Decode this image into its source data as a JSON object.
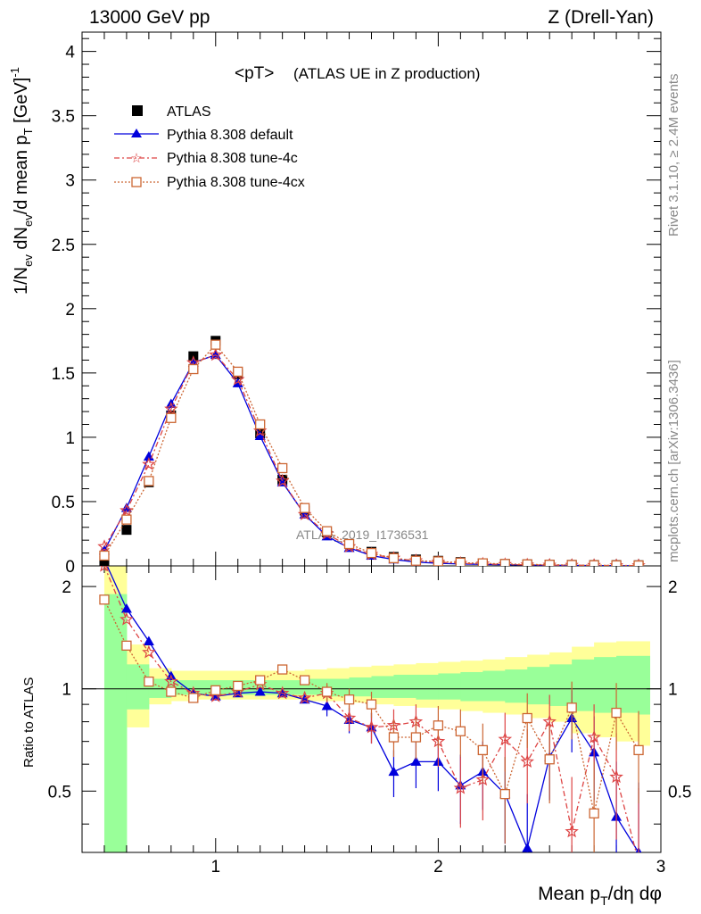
{
  "header": {
    "left": "13000 GeV pp",
    "right": "Z (Drell-Yan)"
  },
  "side_labels": {
    "rivet": "Rivet 3.1.10, ≥ 2.4M events",
    "mcplots": "mcplots.cern.ch [arXiv:1306.3436]"
  },
  "chart_data": {
    "type": "line",
    "title_main": "<pT>",
    "title_sub": "(ATLAS UE in Z production)",
    "watermark": "ATLAS_2019_I1736531",
    "xlabel": "Mean p",
    "xlabel_sub": "T",
    "xlabel_tail": "/dη dφ",
    "ylabel": "1/N",
    "ylabel_full": [
      "1/N",
      "ev",
      " dN",
      "ev",
      "/d mean p",
      "T",
      " [GeV]",
      "-1"
    ],
    "ratio_ylabel": "Ratio to ATLAS",
    "xlim": [
      0.4,
      3.0
    ],
    "ylim_main": [
      0,
      4.15
    ],
    "ylim_ratio": [
      0.33,
      2.3
    ],
    "x_ticks": [
      "1",
      "2",
      "3"
    ],
    "y_ticks_main": [
      "0",
      "0.5",
      "1",
      "1.5",
      "2",
      "2.5",
      "3",
      "3.5",
      "4"
    ],
    "y_ticks_ratio": [
      "0.5",
      "1",
      "2"
    ],
    "legend_placement": "top-left",
    "x": [
      0.5,
      0.6,
      0.7,
      0.8,
      0.9,
      1.0,
      1.1,
      1.2,
      1.3,
      1.4,
      1.5,
      1.6,
      1.7,
      1.8,
      1.9,
      2.0,
      2.1,
      2.2,
      2.3,
      2.4,
      2.5,
      2.6,
      2.7,
      2.8,
      2.9
    ],
    "series": [
      {
        "name": "ATLAS",
        "color": "#000000",
        "values": [
          0.04,
          0.28,
          0.65,
          1.17,
          1.63,
          1.75,
          1.49,
          1.03,
          0.67,
          0.43,
          0.26,
          0.17,
          0.11,
          0.07,
          0.05,
          0.04,
          0.03,
          0.02,
          0.015,
          0.012,
          0.01,
          0.008,
          0.007,
          0.006,
          0.005
        ]
      },
      {
        "name": "Pythia 8.308 default",
        "color": "#0000dd",
        "values": [
          0.12,
          0.45,
          0.85,
          1.26,
          1.58,
          1.64,
          1.42,
          1.01,
          0.65,
          0.4,
          0.23,
          0.14,
          0.08,
          0.05,
          0.03,
          0.02,
          0.015,
          0.012,
          0.009,
          0.007,
          0.005,
          0.004,
          0.003,
          0.002,
          0.001
        ],
        "ratio": [
          2.4,
          1.72,
          1.38,
          1.09,
          0.97,
          0.95,
          0.97,
          0.98,
          0.97,
          0.93,
          0.89,
          0.81,
          0.77,
          0.57,
          0.61,
          0.61,
          0.52,
          0.57,
          0.49,
          0.34,
          0.63,
          0.82,
          0.65,
          0.42,
          0.33
        ]
      },
      {
        "name": "Pythia 8.308 tune-4c",
        "color": "#dd4444",
        "values": [
          0.15,
          0.43,
          0.79,
          1.22,
          1.58,
          1.64,
          1.45,
          1.05,
          0.66,
          0.4,
          0.25,
          0.15,
          0.09,
          0.06,
          0.04,
          0.03,
          0.02,
          0.015,
          0.011,
          0.008,
          0.006,
          0.005,
          0.004,
          0.003,
          0.002
        ],
        "ratio": [
          2.3,
          1.6,
          1.28,
          1.05,
          0.97,
          0.95,
          0.98,
          1.03,
          0.97,
          0.94,
          0.97,
          0.82,
          0.77,
          0.78,
          0.8,
          0.7,
          0.51,
          0.54,
          0.71,
          0.61,
          0.8,
          0.38,
          0.72,
          0.55,
          0.31
        ]
      },
      {
        "name": "Pythia 8.308 tune-4cx",
        "color": "#cc6633",
        "values": [
          0.08,
          0.36,
          0.66,
          1.15,
          1.53,
          1.72,
          1.51,
          1.1,
          0.76,
          0.45,
          0.27,
          0.17,
          0.1,
          0.06,
          0.04,
          0.035,
          0.025,
          0.02,
          0.015,
          0.012,
          0.009,
          0.007,
          0.005,
          0.004,
          0.003
        ],
        "ratio": [
          1.83,
          1.34,
          1.05,
          0.98,
          0.94,
          0.99,
          1.02,
          1.06,
          1.14,
          1.06,
          0.98,
          0.93,
          0.9,
          0.72,
          0.72,
          0.78,
          0.75,
          0.66,
          0.49,
          0.82,
          0.62,
          0.88,
          0.43,
          0.85,
          0.66
        ]
      }
    ],
    "band_yellow": [
      [
        0.5,
        0.6,
        0.62,
        2.35
      ],
      [
        0.6,
        0.7,
        0.77,
        1.35
      ],
      [
        0.7,
        0.8,
        0.9,
        1.15
      ],
      [
        0.8,
        0.9,
        0.92,
        1.13
      ],
      [
        0.9,
        1.0,
        0.93,
        1.13
      ],
      [
        1.0,
        1.1,
        0.93,
        1.13
      ],
      [
        1.1,
        1.2,
        0.93,
        1.13
      ],
      [
        1.2,
        1.3,
        0.93,
        1.13
      ],
      [
        1.3,
        1.4,
        0.93,
        1.13
      ],
      [
        1.4,
        1.5,
        0.92,
        1.14
      ],
      [
        1.5,
        1.6,
        0.92,
        1.15
      ],
      [
        1.6,
        1.7,
        0.91,
        1.16
      ],
      [
        1.7,
        1.8,
        0.9,
        1.17
      ],
      [
        1.8,
        1.9,
        0.89,
        1.18
      ],
      [
        1.9,
        2.0,
        0.88,
        1.19
      ],
      [
        2.0,
        2.1,
        0.87,
        1.2
      ],
      [
        2.1,
        2.2,
        0.86,
        1.21
      ],
      [
        2.2,
        2.3,
        0.85,
        1.22
      ],
      [
        2.3,
        2.4,
        0.84,
        1.24
      ],
      [
        2.4,
        2.5,
        0.82,
        1.26
      ],
      [
        2.5,
        2.6,
        0.8,
        1.28
      ],
      [
        2.6,
        2.7,
        0.74,
        1.33
      ],
      [
        2.7,
        2.8,
        0.72,
        1.37
      ],
      [
        2.8,
        2.9,
        0.7,
        1.38
      ],
      [
        2.9,
        2.95,
        0.68,
        1.38
      ]
    ],
    "band_green": [
      [
        0.5,
        0.6,
        0.33,
        1.9
      ],
      [
        0.6,
        0.7,
        0.87,
        1.18
      ],
      [
        0.7,
        0.8,
        0.94,
        1.07
      ],
      [
        0.8,
        0.9,
        0.96,
        1.06
      ],
      [
        0.9,
        1.0,
        0.96,
        1.06
      ],
      [
        1.0,
        1.1,
        0.96,
        1.06
      ],
      [
        1.1,
        1.2,
        0.96,
        1.06
      ],
      [
        1.2,
        1.3,
        0.96,
        1.06
      ],
      [
        1.3,
        1.4,
        0.96,
        1.06
      ],
      [
        1.4,
        1.5,
        0.96,
        1.07
      ],
      [
        1.5,
        1.6,
        0.95,
        1.07
      ],
      [
        1.6,
        1.7,
        0.95,
        1.08
      ],
      [
        1.7,
        1.8,
        0.94,
        1.09
      ],
      [
        1.8,
        1.9,
        0.94,
        1.1
      ],
      [
        1.9,
        2.0,
        0.93,
        1.1
      ],
      [
        2.0,
        2.1,
        0.93,
        1.11
      ],
      [
        2.1,
        2.2,
        0.92,
        1.12
      ],
      [
        2.2,
        2.3,
        0.92,
        1.13
      ],
      [
        2.3,
        2.4,
        0.91,
        1.14
      ],
      [
        2.4,
        2.5,
        0.9,
        1.16
      ],
      [
        2.5,
        2.6,
        0.89,
        1.18
      ],
      [
        2.6,
        2.7,
        0.86,
        1.22
      ],
      [
        2.7,
        2.8,
        0.85,
        1.24
      ],
      [
        2.8,
        2.9,
        0.85,
        1.25
      ],
      [
        2.9,
        2.95,
        0.84,
        1.25
      ]
    ]
  }
}
